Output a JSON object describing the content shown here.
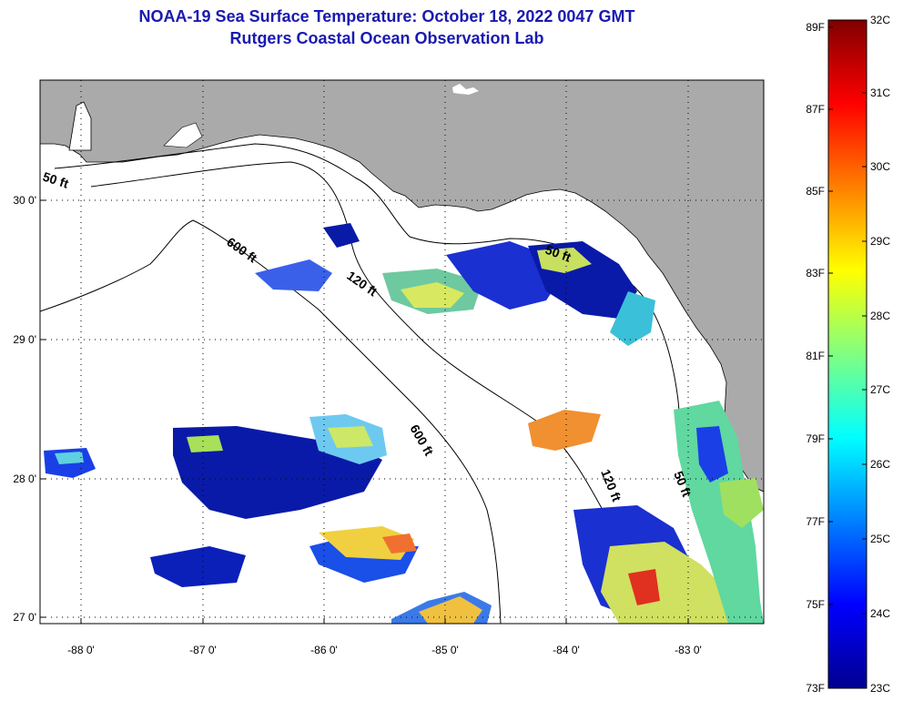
{
  "header": {
    "title": "NOAA-19 Sea Surface Temperature:  October 18, 2022 0047 GMT",
    "subtitle": "Rutgers Coastal Ocean Observation Lab"
  },
  "map": {
    "lon_labels": [
      "-88 0'",
      "-87 0'",
      "-86 0'",
      "-85 0'",
      "-84 0'",
      "-83 0'"
    ],
    "lat_labels": [
      "30 0'",
      "29 0'",
      "28 0'",
      "27 0'"
    ],
    "contour_labels": [
      "50 ft",
      "600 ft",
      "120 ft",
      "50 ft",
      "600 ft",
      "120 ft",
      "50 ft"
    ],
    "colors": {
      "land": "#aaaaaa",
      "ocean": "#ffffff",
      "grid": "#000000"
    }
  },
  "colorbar": {
    "fahrenheit_labels": [
      "89F",
      "87F",
      "85F",
      "83F",
      "81F",
      "79F",
      "77F",
      "75F",
      "73F"
    ],
    "celsius_labels": [
      "32C",
      "31C",
      "30C",
      "29C",
      "28C",
      "27C",
      "26C",
      "25C",
      "24C",
      "23C"
    ],
    "colormap": "jet"
  }
}
